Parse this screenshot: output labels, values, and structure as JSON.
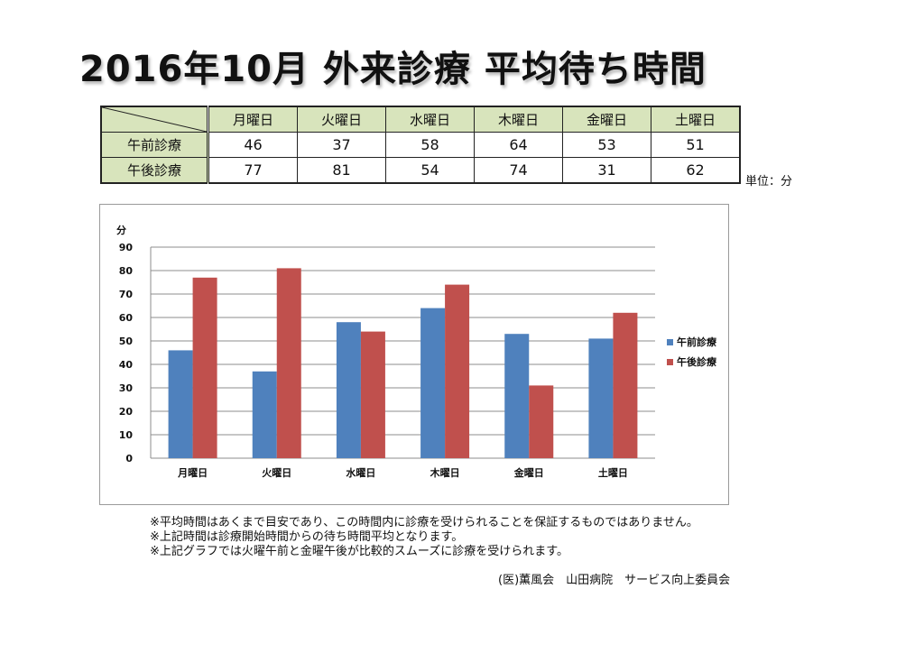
{
  "title": "2016年10月 外来診療 平均待ち時間",
  "table": {
    "days": [
      "月曜日",
      "火曜日",
      "水曜日",
      "木曜日",
      "金曜日",
      "土曜日"
    ],
    "rows": [
      {
        "label": "午前診療",
        "values": [
          "46",
          "37",
          "58",
          "64",
          "53",
          "51"
        ]
      },
      {
        "label": "午後診療",
        "values": [
          "77",
          "81",
          "54",
          "74",
          "31",
          "62"
        ]
      }
    ],
    "unit": "単位：分"
  },
  "chart_data": {
    "type": "bar",
    "categories": [
      "月曜日",
      "火曜日",
      "水曜日",
      "木曜日",
      "金曜日",
      "土曜日"
    ],
    "series": [
      {
        "name": "午前診療",
        "values": [
          46,
          37,
          58,
          64,
          53,
          51
        ],
        "color": "#4f81bd"
      },
      {
        "name": "午後診療",
        "values": [
          77,
          81,
          54,
          74,
          31,
          62
        ],
        "color": "#c0504d"
      }
    ],
    "ylabel": "分",
    "ylim": [
      0,
      90
    ],
    "yticks": [
      0,
      10,
      20,
      30,
      40,
      50,
      60,
      70,
      80,
      90
    ],
    "grid": true,
    "legend": "right"
  },
  "notes": [
    "※平均時間はあくまで目安であり、この時間内に診療を受けられることを保証するものではありません。",
    "※上記時間は診療開始時間からの待ち時間平均となります。",
    "※上記グラフでは火曜午前と金曜午後が比較的スムーズに診療を受けられます。"
  ],
  "footer": "(医)薫風会　山田病院　サービス向上委員会"
}
